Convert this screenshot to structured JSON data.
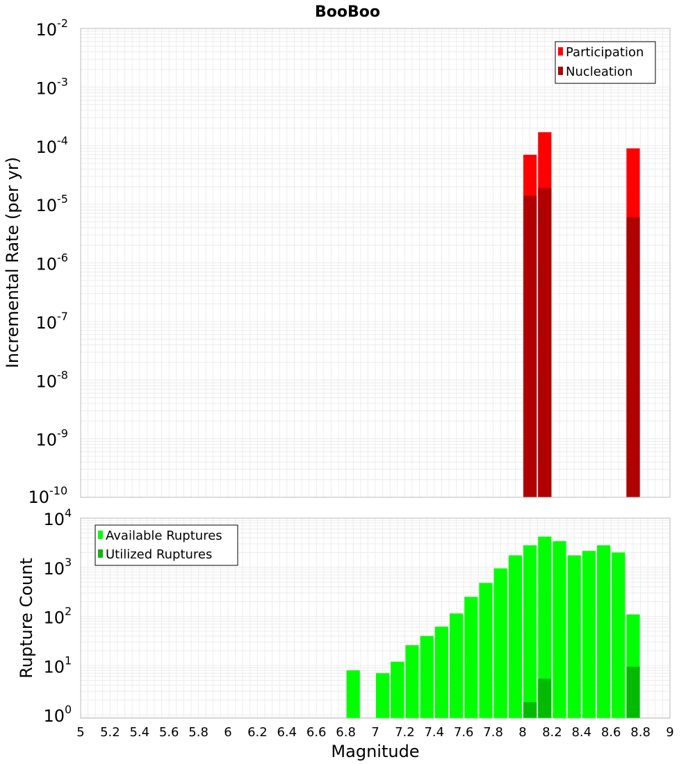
{
  "chart_data": [
    {
      "type": "bar",
      "title": "BooBoo",
      "xlabel": "",
      "ylabel": "Incremental Rate (per yr)",
      "yscale": "log",
      "ylim_exponents": [
        -10,
        -2
      ],
      "y_tick_base": "10",
      "y_tick_exponents": [
        "-10",
        "-9",
        "-8",
        "-7",
        "-6",
        "-5",
        "-4",
        "-3",
        "-2"
      ],
      "xlim": [
        5,
        9
      ],
      "grid": true,
      "legend_position": "top-right",
      "series": [
        {
          "name": "Participation",
          "color": "#ff0000",
          "points": [
            {
              "x": 8.05,
              "y": 7e-05
            },
            {
              "x": 8.15,
              "y": 0.00017
            },
            {
              "x": 8.75,
              "y": 9e-05
            }
          ]
        },
        {
          "name": "Nucleation",
          "color": "#b00000",
          "points": [
            {
              "x": 8.05,
              "y": 1.4e-05
            },
            {
              "x": 8.15,
              "y": 1.9e-05
            },
            {
              "x": 8.75,
              "y": 6e-06
            }
          ]
        }
      ]
    },
    {
      "type": "bar",
      "title": "",
      "xlabel": "Magnitude",
      "ylabel": "Rupture Count",
      "yscale": "log",
      "ylim_exponents": [
        -0.07,
        4
      ],
      "y_tick_base": "10",
      "y_tick_exponents": [
        "0",
        "1",
        "2",
        "3",
        "4"
      ],
      "xlim": [
        5,
        9
      ],
      "x_ticks": [
        "5",
        "5.2",
        "5.4",
        "5.6",
        "5.8",
        "6",
        "6.2",
        "6.4",
        "6.6",
        "6.8",
        "7",
        "7.2",
        "7.4",
        "7.6",
        "7.8",
        "8",
        "8.2",
        "8.4",
        "8.6",
        "8.8",
        "9"
      ],
      "grid": true,
      "legend_position": "top-left",
      "series": [
        {
          "name": "Available Ruptures",
          "color": "#00ff00",
          "points": [
            {
              "x": 6.85,
              "y": 8
            },
            {
              "x": 7.05,
              "y": 7
            },
            {
              "x": 7.15,
              "y": 12
            },
            {
              "x": 7.25,
              "y": 26
            },
            {
              "x": 7.35,
              "y": 40
            },
            {
              "x": 7.45,
              "y": 62
            },
            {
              "x": 7.55,
              "y": 115
            },
            {
              "x": 7.65,
              "y": 250
            },
            {
              "x": 7.75,
              "y": 480
            },
            {
              "x": 7.85,
              "y": 950
            },
            {
              "x": 7.95,
              "y": 1750
            },
            {
              "x": 8.05,
              "y": 2800
            },
            {
              "x": 8.15,
              "y": 4200
            },
            {
              "x": 8.25,
              "y": 3400
            },
            {
              "x": 8.35,
              "y": 1750
            },
            {
              "x": 8.45,
              "y": 2150
            },
            {
              "x": 8.55,
              "y": 2800
            },
            {
              "x": 8.65,
              "y": 2000
            },
            {
              "x": 8.75,
              "y": 110
            }
          ]
        },
        {
          "name": "Utilized Ruptures",
          "color": "#00bb00",
          "points": [
            {
              "x": 8.05,
              "y": 1.8
            },
            {
              "x": 8.15,
              "y": 5.4
            },
            {
              "x": 8.75,
              "y": 9.5
            }
          ]
        }
      ]
    }
  ]
}
